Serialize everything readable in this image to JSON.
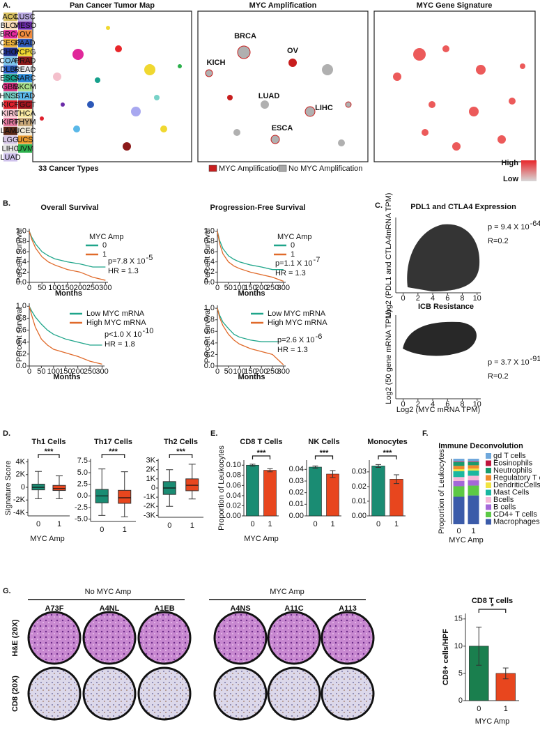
{
  "figure": {
    "panel_labels": [
      "A.",
      "B.",
      "C.",
      "D.",
      "E.",
      "F.",
      "G."
    ],
    "a": {
      "map_titles": [
        "Pan Cancer Tumor Map",
        "MYC Amplification",
        "MYC Gene Signature"
      ],
      "cancer_types": [
        {
          "name": "ACC",
          "color": "#d8c060"
        },
        {
          "name": "BLCA",
          "color": "#f7d9b5"
        },
        {
          "name": "BRCA",
          "color": "#e0289a"
        },
        {
          "name": "CESC",
          "color": "#f0b43c"
        },
        {
          "name": "CHOL",
          "color": "#1f2f8c"
        },
        {
          "name": "COAD",
          "color": "#7cc4ec"
        },
        {
          "name": "DLBC",
          "color": "#2a64c8"
        },
        {
          "name": "ESCA",
          "color": "#16a08c"
        },
        {
          "name": "GBM",
          "color": "#d02c7a"
        },
        {
          "name": "HNSC",
          "color": "#78d2c8"
        },
        {
          "name": "KICH",
          "color": "#e0202c"
        },
        {
          "name": "KIRC",
          "color": "#f4c0cc"
        },
        {
          "name": "KIRP",
          "color": "#e87aa0"
        },
        {
          "name": "LAML",
          "color": "#5a2a18"
        },
        {
          "name": "LGG",
          "color": "#d8c8e8"
        },
        {
          "name": "LIHC",
          "color": "#e6e6e6"
        },
        {
          "name": "LUAD",
          "color": "#cfc2ec"
        },
        {
          "name": "LUSC",
          "color": "#b8a8e0"
        },
        {
          "name": "MESO",
          "color": "#6a2aa8"
        },
        {
          "name": "OV",
          "color": "#f08a3c"
        },
        {
          "name": "PAAD",
          "color": "#2c58b8"
        },
        {
          "name": "PCPG",
          "color": "#f0d830"
        },
        {
          "name": "PRAD",
          "color": "#8c1a1a"
        },
        {
          "name": "READ",
          "color": "#eef0f4"
        },
        {
          "name": "SARC",
          "color": "#2a8ad8"
        },
        {
          "name": "SKCM",
          "color": "#a8e08c"
        },
        {
          "name": "STAD",
          "color": "#5ab8e8"
        },
        {
          "name": "TGCT",
          "color": "#a0141c"
        },
        {
          "name": "THCA",
          "color": "#f8e8a0"
        },
        {
          "name": "THYM",
          "color": "#c8a878"
        },
        {
          "name": "UCEC",
          "color": "#f2ecd8"
        },
        {
          "name": "UCS",
          "color": "#e89a2c"
        },
        {
          "name": "UVM",
          "color": "#2cb04c"
        }
      ],
      "caption": "33 Cancer Types",
      "amp_legend": [
        {
          "name": "MYC Amplification",
          "color": "#c81e1e"
        },
        {
          "name": "No MYC Amplification",
          "color": "#a8a8a8"
        }
      ],
      "map_labels": [
        "BRCA",
        "OV",
        "KICH",
        "LUAD",
        "LIHC",
        "ESCA"
      ],
      "gradient": [
        "High",
        "Low"
      ]
    },
    "d": {
      "ylabel": "Signature Score",
      "xlabel": "MYC Amp"
    },
    "e": {
      "ylabel": "Proportion of Leukocytes",
      "xlabel": "MYC Amp"
    },
    "f": {
      "ylabel": "Proportion of Leukocytes",
      "xlabel": "MYC Amp"
    },
    "g": {
      "groups": [
        "No MYC Amp",
        "MYC Amp"
      ],
      "samples": [
        "A73F",
        "A4NL",
        "A1EB",
        "A4NS",
        "A11C",
        "A113"
      ],
      "rows": [
        "H&E (20X)",
        "CD8 (20X)"
      ]
    }
  },
  "chart_data": [
    {
      "type": "km",
      "title": "Overall Survival",
      "xlabel": "Months",
      "ylabel": "Percent survival",
      "legend_title": "MYC Amp",
      "p_value": "p=7.8 X 10",
      "p_exponent": "-5",
      "hr": "HR = 1.3",
      "xlim": [
        0,
        310
      ],
      "ylim": [
        0,
        1.05
      ],
      "xticks": [
        0,
        50,
        100,
        150,
        200,
        250,
        300
      ],
      "yticks": [
        {
          "value": 0,
          "label": "0.0"
        },
        {
          "value": 0.2,
          "label": "0.2"
        },
        {
          "value": 0.4,
          "label": "0.4"
        },
        {
          "value": 0.6,
          "label": "0.6"
        },
        {
          "value": 0.8,
          "label": "0.8"
        },
        {
          "value": 1,
          "label": "1.0"
        }
      ],
      "series": [
        {
          "name": "0",
          "color": "#1fa58a",
          "x": [
            0,
            10,
            25,
            50,
            75,
            100,
            150,
            200,
            250,
            300
          ],
          "values": [
            1,
            0.88,
            0.75,
            0.6,
            0.52,
            0.46,
            0.4,
            0.36,
            0.3,
            0.3
          ]
        },
        {
          "name": "1",
          "color": "#e06a2a",
          "x": [
            0,
            10,
            25,
            50,
            75,
            100,
            150,
            200,
            250,
            300
          ],
          "values": [
            1,
            0.84,
            0.67,
            0.5,
            0.4,
            0.34,
            0.25,
            0.2,
            0.1,
            0.04
          ]
        }
      ]
    },
    {
      "type": "km",
      "title": "Progression-Free Survival",
      "xlabel": "Months",
      "ylabel": "Percent survival",
      "legend_title": "MYC Amp",
      "p_value": "p=1.1 X 10",
      "p_exponent": "-7",
      "hr": "HR = 1.3",
      "xlim": [
        0,
        310
      ],
      "ylim": [
        0,
        1.05
      ],
      "xticks": [
        0,
        50,
        100,
        150,
        200,
        250,
        300
      ],
      "yticks": [
        {
          "value": 0,
          "label": "0.0"
        },
        {
          "value": 0.2,
          "label": "0.2"
        },
        {
          "value": 0.4,
          "label": "0.4"
        },
        {
          "value": 0.6,
          "label": "0.6"
        },
        {
          "value": 0.8,
          "label": "0.8"
        },
        {
          "value": 1,
          "label": "1.0"
        }
      ],
      "series": [
        {
          "name": "0",
          "color": "#1fa58a",
          "x": [
            0,
            10,
            25,
            50,
            75,
            100,
            150,
            200,
            250,
            300
          ],
          "values": [
            1,
            0.82,
            0.66,
            0.52,
            0.45,
            0.4,
            0.34,
            0.3,
            0.25,
            0.25
          ]
        },
        {
          "name": "1",
          "color": "#e06a2a",
          "x": [
            0,
            10,
            25,
            50,
            75,
            100,
            150,
            200,
            250,
            300
          ],
          "values": [
            1,
            0.76,
            0.56,
            0.4,
            0.32,
            0.27,
            0.2,
            0.15,
            0.1,
            0.02
          ]
        }
      ]
    },
    {
      "type": "km",
      "xlabel": "Months",
      "ylabel": "Percent survival",
      "p_value": "p<1.0 X 10",
      "p_exponent": "-10",
      "hr": "HR = 1.8",
      "xlim": [
        0,
        310
      ],
      "ylim": [
        0,
        1.05
      ],
      "xticks": [
        0,
        50,
        100,
        150,
        200,
        250,
        300
      ],
      "yticks": [
        {
          "value": 0,
          "label": "0.0"
        },
        {
          "value": 0.2,
          "label": "0.2"
        },
        {
          "value": 0.4,
          "label": "0.4"
        },
        {
          "value": 0.6,
          "label": "0.6"
        },
        {
          "value": 0.8,
          "label": "0.8"
        },
        {
          "value": 1,
          "label": "1.0"
        }
      ],
      "series": [
        {
          "name": "Low MYC mRNA",
          "color": "#1fa58a",
          "x": [
            0,
            10,
            25,
            50,
            75,
            100,
            150,
            200,
            250,
            300
          ],
          "values": [
            1,
            0.92,
            0.82,
            0.7,
            0.6,
            0.53,
            0.45,
            0.4,
            0.35,
            0.35
          ]
        },
        {
          "name": "High MYC mRNA",
          "color": "#e06a2a",
          "x": [
            0,
            10,
            25,
            50,
            75,
            100,
            150,
            200,
            250,
            300
          ],
          "values": [
            1,
            0.85,
            0.65,
            0.45,
            0.35,
            0.28,
            0.22,
            0.16,
            0.08,
            0.03
          ]
        }
      ]
    },
    {
      "type": "km",
      "xlabel": "Months",
      "ylabel": "Percent survival",
      "p_value": "p=2.6 X 10",
      "p_exponent": "-6",
      "hr": "HR = 1.3",
      "xlim": [
        0,
        310
      ],
      "ylim": [
        0,
        1.05
      ],
      "xticks": [
        0,
        50,
        100,
        150,
        200,
        250,
        300
      ],
      "yticks": [
        {
          "value": 0,
          "label": "0.0"
        },
        {
          "value": 0.2,
          "label": "0.2"
        },
        {
          "value": 0.4,
          "label": "0.4"
        },
        {
          "value": 0.6,
          "label": "0.6"
        },
        {
          "value": 0.8,
          "label": "0.8"
        },
        {
          "value": 1,
          "label": "1.0"
        }
      ],
      "series": [
        {
          "name": "Low MYC mRNA",
          "color": "#1fa58a",
          "x": [
            0,
            10,
            25,
            50,
            75,
            100,
            150,
            200,
            250,
            280
          ],
          "values": [
            1,
            0.88,
            0.76,
            0.65,
            0.55,
            0.5,
            0.45,
            0.42,
            0.42,
            0.42
          ]
        },
        {
          "name": "High MYC mRNA",
          "color": "#e06a2a",
          "x": [
            0,
            10,
            25,
            50,
            75,
            100,
            150,
            200,
            250,
            300
          ],
          "values": [
            1,
            0.84,
            0.7,
            0.55,
            0.45,
            0.38,
            0.3,
            0.25,
            0.2,
            0.02
          ]
        }
      ]
    },
    {
      "type": "scatter",
      "title": "PDL1 and CTLA4 Expression",
      "ylabel": "Log2 (PDL1 and CTLA4mRNA TPM)",
      "p_value": "p  = 9.4 X 10",
      "p_exponent": "-64",
      "r": "R=0.2",
      "xlim": [
        -1,
        10.5
      ],
      "xticks": [
        0,
        2,
        4,
        6,
        8,
        10
      ]
    },
    {
      "type": "scatter",
      "title": "ICB Resistance",
      "xlabel": "Log2 (MYC mRNA TPM)",
      "ylabel": "Log2 (50 gene mRNA TPM)",
      "p_value": "p  = 3.7 X 10",
      "p_exponent": "-91",
      "r": "R=0.2",
      "xlim": [
        -1,
        10.5
      ],
      "xticks": [
        0,
        2,
        4,
        6,
        8,
        10
      ]
    },
    {
      "type": "box",
      "title": "Th1 Cells",
      "significance": "***",
      "categories": [
        "0",
        "1"
      ],
      "ylim": [
        -4500,
        4500
      ],
      "yticks": [
        {
          "value": 4000,
          "label": "4K"
        },
        {
          "value": 2000,
          "label": "2K"
        },
        0,
        {
          "value": -2000,
          "label": "-2K"
        },
        {
          "value": -4000,
          "label": "-4K"
        }
      ],
      "series": [
        {
          "name": "0",
          "color": "#1a8c73",
          "values": [
            -1800,
            -400,
            0,
            500,
            2500
          ]
        },
        {
          "name": "1",
          "color": "#e8461e",
          "values": [
            -1800,
            -500,
            -200,
            300,
            1800
          ]
        }
      ]
    },
    {
      "type": "box",
      "title": "Th17 Cells",
      "significance": "***",
      "categories": [
        "0",
        "1"
      ],
      "ylim": [
        -5.5,
        8
      ],
      "yticks": [
        {
          "value": 7.5,
          "label": "7.5"
        },
        {
          "value": 5,
          "label": "5.0"
        },
        {
          "value": 2.5,
          "label": "2.5"
        },
        {
          "value": 0,
          "label": "0.0"
        },
        {
          "value": -2.5,
          "label": "-2.5"
        },
        {
          "value": -5,
          "label": "-5.0"
        }
      ],
      "series": [
        {
          "name": "0",
          "color": "#1a8c73",
          "values": [
            -4.2,
            -1.5,
            0,
            1.4,
            5.8
          ]
        },
        {
          "name": "1",
          "color": "#e8461e",
          "values": [
            -4.5,
            -1.6,
            -0.4,
            1.2,
            5.2
          ]
        }
      ]
    },
    {
      "type": "box",
      "title": "Th2 Cells",
      "significance": "***",
      "categories": [
        "0",
        "1"
      ],
      "ylim": [
        -3200,
        3200
      ],
      "yticks": [
        {
          "value": 3000,
          "label": "3K"
        },
        {
          "value": 2000,
          "label": "2K"
        },
        {
          "value": 1000,
          "label": "1K"
        },
        0,
        {
          "value": -1000,
          "label": "-1K"
        },
        {
          "value": -2000,
          "label": "-2K"
        },
        {
          "value": -3000,
          "label": "-3K"
        }
      ],
      "series": [
        {
          "name": "0",
          "color": "#1a8c73",
          "values": [
            -2000,
            -700,
            0,
            700,
            2000
          ]
        },
        {
          "name": "1",
          "color": "#e8461e",
          "values": [
            -1200,
            -300,
            300,
            1000,
            2600
          ]
        }
      ]
    },
    {
      "type": "bar",
      "title": "CD8 T Cells",
      "significance": "***",
      "categories": [
        "0",
        "1"
      ],
      "colors": [
        "#1a8c73",
        "#e8461e"
      ],
      "values": [
        0.1,
        0.09
      ],
      "errors": [
        0.002,
        0.003
      ],
      "ylim": [
        0,
        0.11
      ],
      "yticks": [
        {
          "value": 0,
          "label": "0.00"
        },
        {
          "value": 0.02,
          "label": "0.02"
        },
        {
          "value": 0.04,
          "label": "0.04"
        },
        {
          "value": 0.06,
          "label": "0.06"
        },
        {
          "value": 0.08,
          "label": "0.08"
        },
        {
          "value": 0.1,
          "label": "0.10"
        }
      ]
    },
    {
      "type": "bar",
      "title": "NK Cells",
      "significance": "***",
      "categories": [
        "0",
        "1"
      ],
      "colors": [
        "#1a8c73",
        "#e8461e"
      ],
      "values": [
        0.042,
        0.036
      ],
      "errors": [
        0.001,
        0.003
      ],
      "ylim": [
        0,
        0.048
      ],
      "yticks": [
        {
          "value": 0,
          "label": "0.00"
        },
        {
          "value": 0.01,
          "label": "0.01"
        },
        {
          "value": 0.02,
          "label": "0.02"
        },
        {
          "value": 0.03,
          "label": "0.03"
        },
        {
          "value": 0.04,
          "label": "0.04"
        }
      ]
    },
    {
      "type": "bar",
      "title": "Monocytes",
      "significance": "***",
      "categories": [
        "0",
        "1"
      ],
      "colors": [
        "#1a8c73",
        "#e8461e"
      ],
      "values": [
        0.034,
        0.025
      ],
      "errors": [
        0.001,
        0.003
      ],
      "ylim": [
        0,
        0.038
      ],
      "yticks": [
        {
          "value": 0,
          "label": "0.00"
        },
        {
          "value": 0.01,
          "label": "0.01"
        },
        {
          "value": 0.02,
          "label": "0.02"
        },
        {
          "value": 0.03,
          "label": "0.03"
        }
      ]
    },
    {
      "type": "stacked_bar",
      "title": "Immune Deconvolution",
      "categories": [
        "0",
        "1"
      ],
      "ylim": [
        0,
        1
      ],
      "series": [
        {
          "name": "gd T cells",
          "color": "#6fa8dc",
          "values": [
            0.04,
            0.04
          ]
        },
        {
          "name": "Eosinophils",
          "color": "#c0143c",
          "values": [
            0.01,
            0.01
          ]
        },
        {
          "name": "Neutrophils",
          "color": "#1a9c6c",
          "values": [
            0.06,
            0.05
          ]
        },
        {
          "name": "Regulatory T cells",
          "color": "#f08a2c",
          "values": [
            0.05,
            0.05
          ]
        },
        {
          "name": "DendriticCells",
          "color": "#f0e442",
          "values": [
            0.03,
            0.03
          ]
        },
        {
          "name": "Mast Cells",
          "color": "#1ab7a0",
          "values": [
            0.09,
            0.08
          ]
        },
        {
          "name": "Bcells",
          "color": "#f6b8d8",
          "values": [
            0.06,
            0.07
          ]
        },
        {
          "name": "B cells",
          "color": "#a468d8",
          "values": [
            0.08,
            0.08
          ]
        },
        {
          "name": "CD4+ T cells",
          "color": "#5cc945",
          "values": [
            0.16,
            0.15
          ]
        },
        {
          "name": "Macrophages",
          "color": "#3b5ba9",
          "values": [
            0.42,
            0.44
          ]
        }
      ]
    },
    {
      "type": "bar",
      "title": "CD8 T cells",
      "significance": "*",
      "xlabel": "MYC Amp",
      "ylabel": "CD8+ cells/HPF",
      "categories": [
        "0",
        "1"
      ],
      "colors": [
        "#1a7f4e",
        "#e8461e"
      ],
      "values": [
        10,
        5
      ],
      "errors": [
        3.5,
        1
      ],
      "ylim": [
        0,
        16
      ],
      "yticks": [
        0,
        5,
        10,
        15
      ]
    }
  ]
}
